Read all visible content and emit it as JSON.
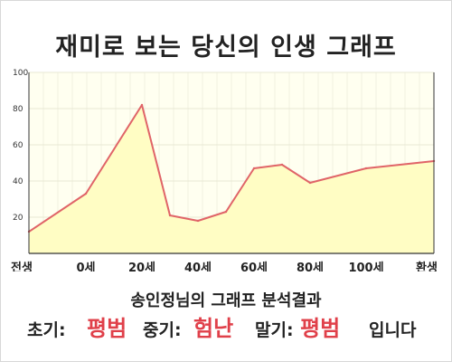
{
  "title": "재미로 보는 당신의 인생 그래프",
  "subtitle": "송인정님의 그래프 분석결과",
  "summary": {
    "early_label": "초기:",
    "early_value": "평범",
    "middle_label": "중기:",
    "middle_value": "험난",
    "late_label": "말기:",
    "late_value": "평범",
    "suffix": "입니다"
  },
  "colors": {
    "line": "#e06468",
    "fill": "#fffdc4",
    "plot_bg": "#fffff0",
    "grid": "#e8e8d4",
    "highlight": "#e0404a"
  },
  "chart_data": {
    "type": "area",
    "title": "",
    "xlabel": "",
    "ylabel": "",
    "ylim": [
      0,
      100
    ],
    "yticks": [
      20,
      40,
      60,
      80,
      100
    ],
    "grid": true,
    "categories": [
      "전생",
      "0세",
      "20세",
      "40세",
      "60세",
      "80세",
      "100세",
      "환생"
    ],
    "x": [
      -1,
      0,
      20,
      30,
      40,
      50,
      60,
      70,
      80,
      100,
      120
    ],
    "xtick_positions": [
      -1,
      0,
      20,
      40,
      60,
      80,
      100,
      120
    ],
    "values": [
      12,
      33,
      82,
      21,
      18,
      23,
      47,
      49,
      39,
      47,
      51
    ]
  }
}
